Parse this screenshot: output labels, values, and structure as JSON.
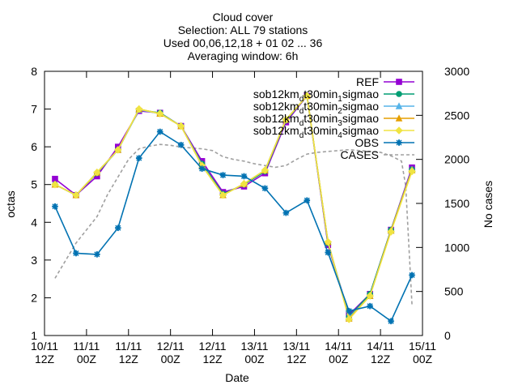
{
  "chart_data": {
    "type": "line",
    "title_lines": [
      "Cloud cover",
      "Selection: ALL     79 stations",
      "Used 00,06,12,18 + 01 02 ... 36",
      "Averaging window:  6h"
    ],
    "xlabel": "Date",
    "ylabel": "octas",
    "y2label": "No cases",
    "ylim": [
      1,
      8
    ],
    "y2lim": [
      0,
      3000
    ],
    "yticks": [
      1,
      2,
      3,
      4,
      5,
      6,
      7,
      8
    ],
    "y2ticks": [
      0,
      500,
      1000,
      1500,
      2000,
      2500,
      3000
    ],
    "xlim": [
      0,
      4.5
    ],
    "xticks": [
      {
        "x": 0.0,
        "l1": "10/11",
        "l2": "12Z"
      },
      {
        "x": 0.5,
        "l1": "11/11",
        "l2": "00Z"
      },
      {
        "x": 1.0,
        "l1": "11/11",
        "l2": "12Z"
      },
      {
        "x": 1.5,
        "l1": "12/11",
        "l2": "00Z"
      },
      {
        "x": 2.0,
        "l1": "12/11",
        "l2": "12Z"
      },
      {
        "x": 2.5,
        "l1": "13/11",
        "l2": "00Z"
      },
      {
        "x": 3.0,
        "l1": "13/11",
        "l2": "12Z"
      },
      {
        "x": 3.5,
        "l1": "14/11",
        "l2": "00Z"
      },
      {
        "x": 4.0,
        "l1": "14/11",
        "l2": "12Z"
      },
      {
        "x": 4.5,
        "l1": "15/11",
        "l2": "00Z"
      }
    ],
    "legend_position": "top-right",
    "grid": false,
    "x": [
      0.125,
      0.375,
      0.625,
      0.875,
      1.125,
      1.375,
      1.625,
      1.875,
      2.125,
      2.375,
      2.625,
      2.875,
      3.125,
      3.375,
      3.625,
      3.875,
      4.125,
      4.375
    ],
    "series": [
      {
        "name": "REF",
        "sub": "",
        "color": "#9400d3",
        "marker": "square",
        "values": [
          5.15,
          4.72,
          5.22,
          6.0,
          6.95,
          6.9,
          6.55,
          5.62,
          4.8,
          4.95,
          5.3,
          6.65,
          7.35,
          3.4,
          1.55,
          2.1,
          3.8,
          5.45
        ]
      },
      {
        "name": "sob12km",
        "sub": "d",
        "name2": "t30min",
        "sub2": "1",
        "name3": "sigmao",
        "color": "#009e73",
        "marker": "circle",
        "values": [
          5.0,
          4.72,
          5.3,
          5.92,
          6.98,
          6.9,
          6.55,
          5.55,
          4.75,
          5.0,
          5.35,
          6.7,
          7.35,
          3.45,
          1.5,
          2.1,
          3.8,
          5.4
        ]
      },
      {
        "name": "sob12km",
        "sub": "d",
        "name2": "t30min",
        "sub2": "2",
        "name3": "sigmao",
        "color": "#56b4e9",
        "marker": "triangle",
        "values": [
          5.0,
          4.72,
          5.32,
          5.92,
          6.98,
          6.88,
          6.55,
          5.52,
          4.72,
          5.02,
          5.38,
          6.72,
          7.35,
          3.48,
          1.48,
          2.05,
          3.78,
          5.4
        ]
      },
      {
        "name": "sob12km",
        "sub": "d",
        "name2": "t30min",
        "sub2": "3",
        "name3": "sigmao",
        "color": "#e69f00",
        "marker": "triangle",
        "values": [
          5.0,
          4.72,
          5.32,
          5.92,
          7.0,
          6.88,
          6.55,
          5.5,
          4.72,
          5.02,
          5.38,
          6.72,
          7.35,
          3.48,
          1.45,
          2.05,
          3.78,
          5.38
        ]
      },
      {
        "name": "sob12km",
        "sub": "d",
        "name2": "t30min",
        "sub2": "4",
        "name3": "sigmao",
        "color": "#f0e442",
        "marker": "diamond",
        "values": [
          5.0,
          4.72,
          5.32,
          5.92,
          7.0,
          6.88,
          6.55,
          5.5,
          4.72,
          5.02,
          5.38,
          6.72,
          7.35,
          3.48,
          1.43,
          2.05,
          3.75,
          5.35
        ]
      },
      {
        "name": "OBS",
        "sub": "",
        "color": "#0072b2",
        "marker": "star",
        "values": [
          4.42,
          3.18,
          3.15,
          3.85,
          5.7,
          6.4,
          6.05,
          5.42,
          5.25,
          5.22,
          4.9,
          4.25,
          4.58,
          3.2,
          1.65,
          1.78,
          1.38,
          2.6
        ]
      }
    ],
    "cases": {
      "name": "CASES",
      "color": "#a0a0a0",
      "axis": "y2",
      "x": [
        0.125,
        0.25,
        0.375,
        0.5,
        0.625,
        0.75,
        0.875,
        1.0,
        1.125,
        1.25,
        1.375,
        1.5,
        1.625,
        1.75,
        1.875,
        2.0,
        2.125,
        2.25,
        2.375,
        2.5,
        2.625,
        2.75,
        2.875,
        3.0,
        3.125,
        3.25,
        3.375,
        3.5,
        3.625,
        3.75,
        3.875,
        4.0,
        4.125,
        4.25,
        4.3,
        4.375
      ],
      "values": [
        650,
        850,
        1050,
        1200,
        1350,
        1600,
        1800,
        2000,
        2120,
        2150,
        2170,
        2160,
        2140,
        2130,
        2120,
        2100,
        2030,
        2000,
        1980,
        1950,
        1930,
        1910,
        1930,
        2000,
        2060,
        2080,
        2090,
        2100,
        2110,
        2100,
        2090,
        2080,
        2040,
        1980,
        1700,
        350
      ]
    }
  }
}
